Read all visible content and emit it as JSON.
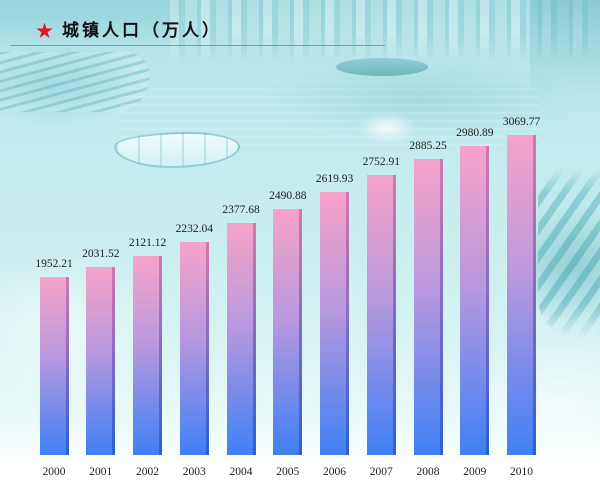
{
  "colors": {
    "title_star": "#e3161d",
    "title_text": "#111111",
    "bar_top": "#f7a3c8",
    "bar_middle": "#b898de",
    "bar_bottom": "#3f80f5",
    "bar_side_top": "#d478ad",
    "bar_side_bottom": "#2a5fd4",
    "label_text": "#1e1e1e"
  },
  "icons": {
    "title_marker": "star-icon"
  },
  "chart_data": {
    "type": "bar",
    "title": "城镇人口（万人）",
    "categories": [
      "2000",
      "2001",
      "2002",
      "2003",
      "2004",
      "2005",
      "2006",
      "2007",
      "2008",
      "2009",
      "2010"
    ],
    "values": [
      1952.21,
      2031.52,
      2121.12,
      2232.04,
      2377.68,
      2490.88,
      2619.93,
      2752.91,
      2885.25,
      2980.89,
      3069.77
    ],
    "ylim": [
      550,
      3150
    ],
    "grid": false
  }
}
